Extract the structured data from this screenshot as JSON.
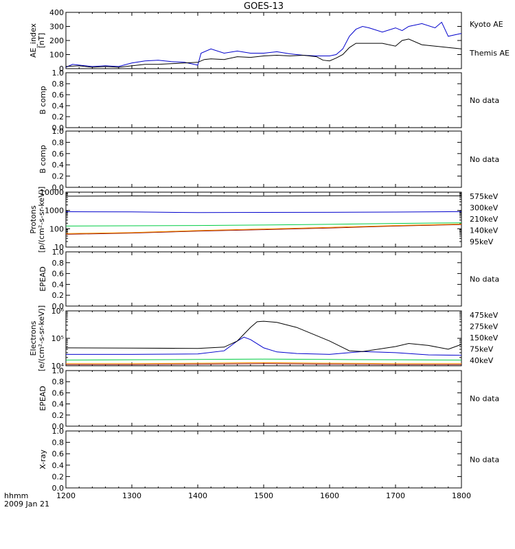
{
  "title": "GOES-13",
  "footer": {
    "time_label": "hhmm",
    "date_label": "2009 Jan 21"
  },
  "x_axis": {
    "range": [
      1200,
      1800
    ],
    "ticks": [
      "1200",
      "1300",
      "1400",
      "1500",
      "1600",
      "1700",
      "1800"
    ]
  },
  "chart_data": [
    {
      "id": "ae",
      "type": "line",
      "ylabel": "AE_index\n[nT]",
      "ylim": [
        0,
        400
      ],
      "yticks": [
        "0",
        "100",
        "200",
        "300",
        "400"
      ],
      "series": [
        {
          "name": "Kyoto AE",
          "color": "#0000cc",
          "x": [
            1200,
            1210,
            1220,
            1240,
            1260,
            1280,
            1300,
            1320,
            1340,
            1360,
            1380,
            1400,
            1405,
            1420,
            1440,
            1460,
            1480,
            1500,
            1520,
            1540,
            1560,
            1580,
            1600,
            1610,
            1620,
            1630,
            1640,
            1650,
            1660,
            1680,
            1700,
            1710,
            1720,
            1740,
            1760,
            1770,
            1780,
            1790,
            1800
          ],
          "y": [
            10,
            30,
            25,
            15,
            20,
            15,
            40,
            55,
            60,
            50,
            45,
            25,
            110,
            140,
            110,
            125,
            110,
            110,
            120,
            105,
            95,
            90,
            90,
            100,
            140,
            230,
            280,
            300,
            290,
            260,
            290,
            270,
            300,
            320,
            290,
            330,
            230,
            240,
            250
          ]
        },
        {
          "name": "Themis AE",
          "color": "#000000",
          "x": [
            1200,
            1220,
            1240,
            1260,
            1280,
            1300,
            1320,
            1340,
            1360,
            1380,
            1400,
            1410,
            1420,
            1440,
            1460,
            1480,
            1500,
            1520,
            1540,
            1560,
            1580,
            1590,
            1600,
            1610,
            1620,
            1630,
            1640,
            1660,
            1680,
            1700,
            1710,
            1720,
            1740,
            1760,
            1780,
            1800
          ],
          "y": [
            15,
            20,
            10,
            15,
            10,
            20,
            30,
            30,
            35,
            40,
            45,
            65,
            70,
            65,
            85,
            80,
            90,
            95,
            90,
            95,
            85,
            60,
            55,
            75,
            100,
            150,
            180,
            180,
            180,
            160,
            200,
            210,
            170,
            160,
            150,
            140
          ]
        }
      ]
    },
    {
      "id": "bcomp1",
      "type": "line",
      "ylabel": "B comp",
      "ylim": [
        0,
        1
      ],
      "yticks": [
        "0.0",
        "0.2",
        "0.4",
        "0.6",
        "0.8",
        "1.0"
      ],
      "series": [],
      "no_data": "No data"
    },
    {
      "id": "bcomp2",
      "type": "line",
      "ylabel": "B comp",
      "ylim": [
        0,
        1
      ],
      "yticks": [
        "0.0",
        "0.2",
        "0.4",
        "0.6",
        "0.8",
        "1.0"
      ],
      "series": [],
      "no_data": "No data"
    },
    {
      "id": "protons",
      "type": "line",
      "scale": "log",
      "ylabel": "Protons\n[p/(cm²-s-sr-keV)]",
      "ylim": [
        10,
        10000
      ],
      "yticks": [
        "10",
        "100",
        "1000",
        "10000"
      ],
      "series": [
        {
          "name": "575keV",
          "color": "#8b0000",
          "x": [
            1200,
            1300,
            1400,
            1500,
            1600,
            1700,
            1800
          ],
          "y": [
            50,
            58,
            75,
            90,
            110,
            140,
            170
          ]
        },
        {
          "name": "300keV",
          "color": "#ff9900",
          "x": [
            1200,
            1300,
            1400,
            1500,
            1600,
            1700,
            1800
          ],
          "y": [
            55,
            62,
            80,
            98,
            120,
            150,
            180
          ]
        },
        {
          "name": "210keV",
          "color": "#00cc44",
          "x": [
            1200,
            1300,
            1400,
            1500,
            1600,
            1700,
            1800
          ],
          "y": [
            140,
            145,
            150,
            160,
            175,
            195,
            210
          ]
        },
        {
          "name": "140keV",
          "color": "#0000cc",
          "x": [
            1200,
            1300,
            1400,
            1500,
            1600,
            1700,
            1800
          ],
          "y": [
            850,
            830,
            760,
            780,
            790,
            820,
            860
          ]
        },
        {
          "name": "95keV",
          "color": "#000000",
          "x": [
            1200,
            1300,
            1400,
            1500,
            1600,
            1700,
            1800
          ],
          "y": [
            6000,
            6200,
            6300,
            6100,
            6400,
            6500,
            6300
          ]
        }
      ]
    },
    {
      "id": "epead1",
      "type": "line",
      "ylabel": "EPEAD",
      "ylim": [
        0,
        1
      ],
      "yticks": [
        "0.0",
        "0.2",
        "0.4",
        "0.6",
        "0.8",
        "1.0"
      ],
      "series": [],
      "no_data": "No data"
    },
    {
      "id": "electrons",
      "type": "line",
      "scale": "log",
      "ylabel": "Electrons\n[e/(cm²-s-sr-keV)]",
      "ylim": [
        10000,
        1000000
      ],
      "yticks": [
        "10⁴",
        "10⁵",
        "10⁶"
      ],
      "series": [
        {
          "name": "475keV",
          "color": "#8b0000",
          "x": [
            1200,
            1300,
            1400,
            1500,
            1600,
            1700,
            1800
          ],
          "y": [
            11000,
            11000,
            11500,
            12000,
            11500,
            11000,
            11000
          ]
        },
        {
          "name": "275keV",
          "color": "#ff9900",
          "x": [
            1200,
            1300,
            1400,
            1500,
            1600,
            1700,
            1800
          ],
          "y": [
            12000,
            12000,
            12500,
            13000,
            12500,
            12000,
            12000
          ]
        },
        {
          "name": "150keV",
          "color": "#00cc44",
          "x": [
            1200,
            1300,
            1400,
            1500,
            1600,
            1700,
            1800
          ],
          "y": [
            16000,
            16500,
            17000,
            17500,
            17000,
            16500,
            16000
          ]
        },
        {
          "name": "75keV",
          "color": "#0000cc",
          "x": [
            1200,
            1300,
            1400,
            1440,
            1460,
            1470,
            1480,
            1500,
            1520,
            1550,
            1600,
            1650,
            1700,
            1750,
            1800
          ],
          "y": [
            26000,
            26000,
            27000,
            35000,
            80000,
            110000,
            90000,
            45000,
            32000,
            28000,
            26000,
            33000,
            30000,
            25000,
            24000
          ]
        },
        {
          "name": "40keV",
          "color": "#000000",
          "x": [
            1200,
            1300,
            1400,
            1440,
            1460,
            1480,
            1490,
            1500,
            1520,
            1550,
            1600,
            1630,
            1650,
            1700,
            1720,
            1750,
            1780,
            1800
          ],
          "y": [
            45000,
            44000,
            43000,
            48000,
            80000,
            250000,
            400000,
            420000,
            380000,
            250000,
            80000,
            35000,
            33000,
            50000,
            65000,
            55000,
            40000,
            60000
          ]
        }
      ]
    },
    {
      "id": "epead2",
      "type": "line",
      "ylabel": "EPEAD",
      "ylim": [
        0,
        1
      ],
      "yticks": [
        "0.0",
        "0.2",
        "0.4",
        "0.6",
        "0.8",
        "1.0"
      ],
      "series": [],
      "no_data": "No data"
    },
    {
      "id": "xray",
      "type": "line",
      "ylabel": "X-ray",
      "ylim": [
        0,
        1
      ],
      "yticks": [
        "0.0",
        "0.2",
        "0.4",
        "0.6",
        "0.8",
        "1.0"
      ],
      "series": [],
      "no_data": "No data"
    }
  ]
}
